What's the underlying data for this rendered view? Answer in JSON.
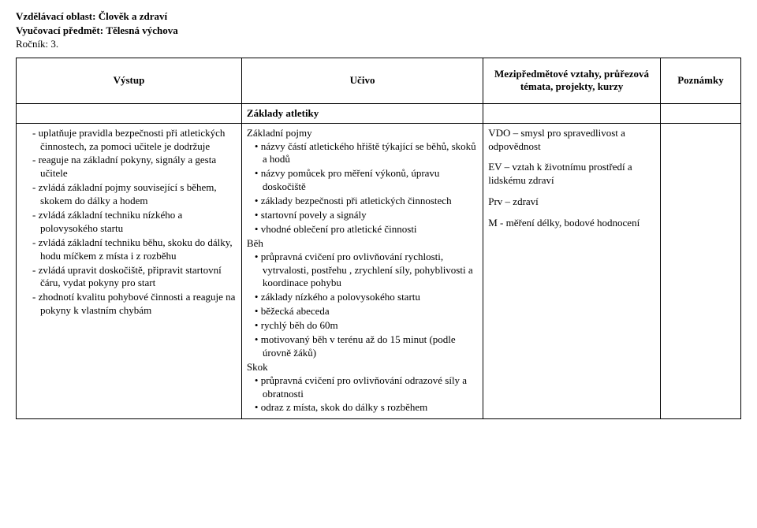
{
  "header": {
    "area_label": "Vzdělávací oblast:",
    "area_value": "Člověk a zdraví",
    "subject_label": "Vyučovací předmět:",
    "subject_value": "Tělesná výchova",
    "grade_label": "Ročník:",
    "grade_value": "3."
  },
  "columns": {
    "c1": "Výstup",
    "c2": "Učivo",
    "c3": "Mezipředmětové vztahy, průřezová témata, projekty, kurzy",
    "c4": "Poznámky"
  },
  "section_title": "Základy atletiky",
  "col1": {
    "items": [
      "uplatňuje pravidla bezpečnosti při atletických činnostech, za pomoci učitele je dodržuje",
      "reaguje na základní pokyny, signály a gesta učitele",
      "zvládá základní pojmy související s během, skokem do dálky a hodem",
      "zvládá základní techniku nízkého a polovysokého startu",
      "zvládá základní techniku běhu, skoku do dálky, hodu míčkem z místa i z rozběhu",
      "zvládá upravit doskočiště, připravit startovní čáru, vydat pokyny pro start",
      "zhodnotí kvalitu pohybové činnosti a reaguje na pokyny k vlastním chybám"
    ]
  },
  "col2": {
    "group1_title": "Základní pojmy",
    "group1": [
      "názvy částí atletického hřiště týkající se běhů, skoků a hodů",
      "názvy pomůcek pro měření výkonů, úpravu doskočiště",
      "základy bezpečnosti při atletických činnostech",
      "startovní povely a signály",
      "vhodné oblečení pro atletické činnosti"
    ],
    "group2_title": "Běh",
    "group2": [
      "průpravná cvičení pro ovlivňování rychlosti, vytrvalosti, postřehu , zrychlení síly, pohyblivosti a koordinace pohybu",
      "základy nízkého a polovysokého startu",
      "běžecká abeceda",
      "rychlý běh do 60m",
      "motivovaný běh v terénu až do 15 minut (podle úrovně žáků)"
    ],
    "group3_title": "Skok",
    "group3": [
      "průpravná cvičení pro ovlivňování odrazové síly a obratnosti",
      "odraz z místa, skok do dálky s rozběhem"
    ]
  },
  "col3": {
    "p1": "VDO – smysl pro spravedlivost a odpovědnost",
    "p2": "EV – vztah k životnímu prostředí a lidskému zdraví",
    "p3": "Prv – zdraví",
    "p4": "M -  měření délky, bodové hodnocení"
  }
}
